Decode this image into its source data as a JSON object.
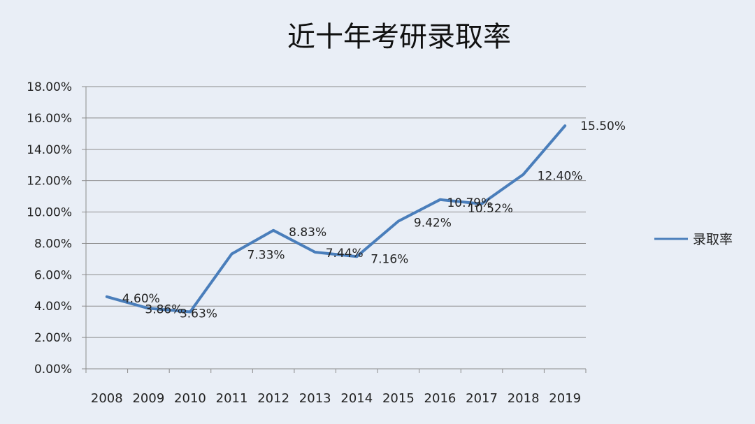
{
  "chart_data": {
    "type": "line",
    "title": "近十年考研录取率",
    "xlabel": "",
    "ylabel": "",
    "categories": [
      "2008",
      "2009",
      "2010",
      "2011",
      "2012",
      "2013",
      "2014",
      "2015",
      "2016",
      "2017",
      "2018",
      "2019"
    ],
    "series": [
      {
        "name": "录取率",
        "values": [
          4.6,
          3.86,
          3.63,
          7.33,
          8.83,
          7.44,
          7.16,
          9.42,
          10.79,
          10.52,
          12.4,
          15.5
        ],
        "labels": [
          "4.60%",
          "3.86%",
          "3.63%",
          "7.33%",
          "8.83%",
          "7.44%",
          "7.16%",
          "9.42%",
          "10.79%",
          "10.52%",
          "12.40%",
          "15.50%"
        ],
        "color": "#4a7ebb"
      }
    ],
    "yticks": [
      "0.00%",
      "2.00%",
      "4.00%",
      "6.00%",
      "8.00%",
      "10.00%",
      "12.00%",
      "14.00%",
      "16.00%",
      "18.00%"
    ],
    "ylim": [
      0,
      18
    ],
    "grid": true,
    "legend_position": "right"
  },
  "colors": {
    "background": "#e9eef6",
    "gridline": "#8c8c8c",
    "axis": "#8c8c8c",
    "line": "#4a7ebb"
  }
}
